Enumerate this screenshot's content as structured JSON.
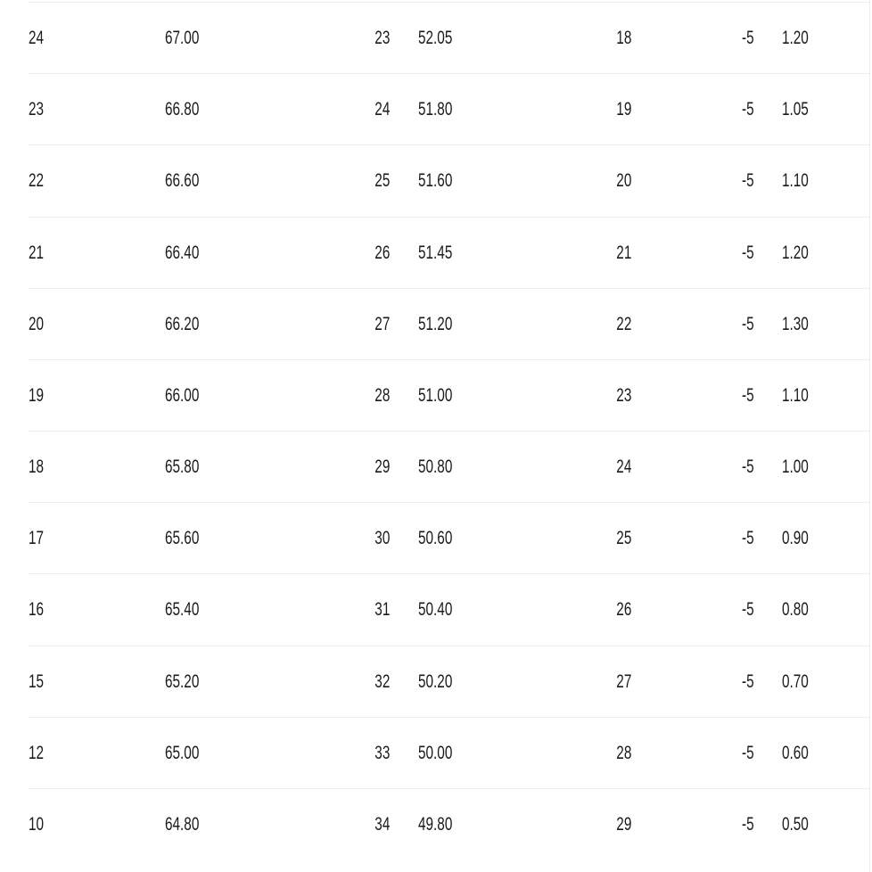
{
  "colors": {
    "background": "#ffffff",
    "text": "#1b1b1b",
    "divider": "#ececec",
    "right_border": "#ececec"
  },
  "table": {
    "rows": [
      [
        "24",
        "67.00",
        "23",
        "52.05",
        "18",
        "-5",
        "1.20"
      ],
      [
        "23",
        "66.80",
        "24",
        "51.80",
        "19",
        "-5",
        "1.05"
      ],
      [
        "22",
        "66.60",
        "25",
        "51.60",
        "20",
        "-5",
        "1.10"
      ],
      [
        "21",
        "66.40",
        "26",
        "51.45",
        "21",
        "-5",
        "1.20"
      ],
      [
        "20",
        "66.20",
        "27",
        "51.20",
        "22",
        "-5",
        "1.30"
      ],
      [
        "19",
        "66.00",
        "28",
        "51.00",
        "23",
        "-5",
        "1.10"
      ],
      [
        "18",
        "65.80",
        "29",
        "50.80",
        "24",
        "-5",
        "1.00"
      ],
      [
        "17",
        "65.60",
        "30",
        "50.60",
        "25",
        "-5",
        "0.90"
      ],
      [
        "16",
        "65.40",
        "31",
        "50.40",
        "26",
        "-5",
        "0.80"
      ],
      [
        "15",
        "65.20",
        "32",
        "50.20",
        "27",
        "-5",
        "0.70"
      ],
      [
        "12",
        "65.00",
        "33",
        "50.00",
        "28",
        "-5",
        "0.60"
      ],
      [
        "10",
        "64.80",
        "34",
        "49.80",
        "29",
        "-5",
        "0.50"
      ]
    ]
  }
}
